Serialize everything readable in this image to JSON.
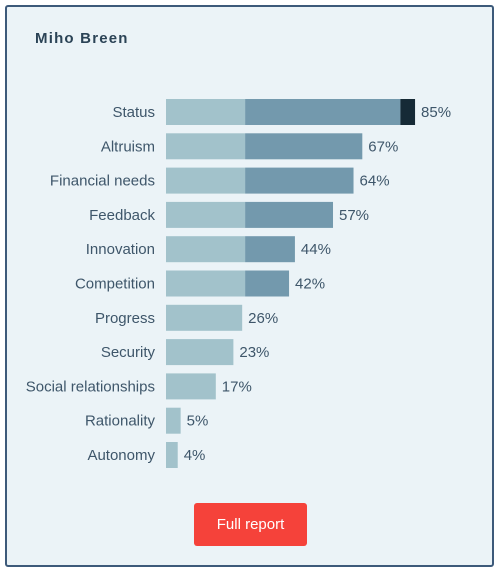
{
  "card": {
    "title": "Miho Breen"
  },
  "button": {
    "label": "Full report"
  },
  "colors": {
    "segment_light": "#a2c2cb",
    "segment_mid": "#7399ad",
    "segment_dark": "#162a36",
    "button": "#f5423a",
    "background": "#ebf3f7"
  },
  "chart_data": {
    "type": "bar",
    "orientation": "horizontal",
    "stacked": true,
    "categories": [
      "Status",
      "Altruism",
      "Financial needs",
      "Feedback",
      "Innovation",
      "Competition",
      "Progress",
      "Security",
      "Social relationships",
      "Rationality",
      "Autonomy"
    ],
    "values": [
      85,
      67,
      64,
      57,
      44,
      42,
      26,
      23,
      17,
      5,
      4
    ],
    "value_labels": [
      "85%",
      "67%",
      "64%",
      "57%",
      "44%",
      "42%",
      "26%",
      "23%",
      "17%",
      "5%",
      "4%"
    ],
    "segment_thresholds": [
      27,
      80,
      100
    ],
    "xlim": [
      0,
      100
    ],
    "grid": false,
    "legend": "none"
  }
}
